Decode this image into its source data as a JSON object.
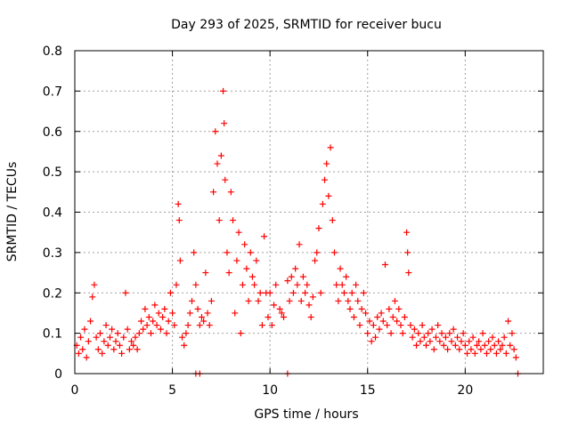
{
  "chart_data": {
    "type": "scatter",
    "title": "Day 293 of 2025, SRMTID for receiver bucu",
    "xlabel": "GPS time / hours",
    "ylabel": "SRMTID / TECUs",
    "xlim": [
      0,
      24
    ],
    "ylim": [
      0,
      0.8
    ],
    "xticks": [
      0,
      5,
      10,
      15,
      20
    ],
    "xtick_labels": [
      "0",
      "5",
      "10",
      "15",
      "20"
    ],
    "yticks": [
      0,
      0.1,
      0.2,
      0.3,
      0.4,
      0.5,
      0.6,
      0.7,
      0.8
    ],
    "ytick_labels": [
      "0",
      "0.1",
      "0.2",
      "0.3",
      "0.4",
      "0.5",
      "0.6",
      "0.7",
      "0.8"
    ],
    "grid": true,
    "marker": "plus",
    "color": "#ff0000",
    "series": [
      {
        "name": "SRMTID",
        "points": [
          [
            0.1,
            0.07
          ],
          [
            0.2,
            0.05
          ],
          [
            0.3,
            0.09
          ],
          [
            0.4,
            0.06
          ],
          [
            0.5,
            0.11
          ],
          [
            0.6,
            0.04
          ],
          [
            0.7,
            0.08
          ],
          [
            0.8,
            0.13
          ],
          [
            0.9,
            0.19
          ],
          [
            1.0,
            0.22
          ],
          [
            1.1,
            0.09
          ],
          [
            1.2,
            0.06
          ],
          [
            1.3,
            0.1
          ],
          [
            1.4,
            0.05
          ],
          [
            1.5,
            0.08
          ],
          [
            1.6,
            0.12
          ],
          [
            1.7,
            0.07
          ],
          [
            1.8,
            0.09
          ],
          [
            1.9,
            0.11
          ],
          [
            2.0,
            0.06
          ],
          [
            2.1,
            0.08
          ],
          [
            2.2,
            0.1
          ],
          [
            2.3,
            0.07
          ],
          [
            2.4,
            0.05
          ],
          [
            2.5,
            0.09
          ],
          [
            2.6,
            0.2
          ],
          [
            2.7,
            0.11
          ],
          [
            2.8,
            0.06
          ],
          [
            2.9,
            0.08
          ],
          [
            3.0,
            0.07
          ],
          [
            3.1,
            0.09
          ],
          [
            3.2,
            0.06
          ],
          [
            3.3,
            0.1
          ],
          [
            3.4,
            0.13
          ],
          [
            3.5,
            0.11
          ],
          [
            3.6,
            0.16
          ],
          [
            3.7,
            0.12
          ],
          [
            3.8,
            0.14
          ],
          [
            3.9,
            0.1
          ],
          [
            4.0,
            0.13
          ],
          [
            4.1,
            0.17
          ],
          [
            4.2,
            0.12
          ],
          [
            4.3,
            0.15
          ],
          [
            4.4,
            0.11
          ],
          [
            4.5,
            0.14
          ],
          [
            4.6,
            0.16
          ],
          [
            4.7,
            0.1
          ],
          [
            4.8,
            0.13
          ],
          [
            4.9,
            0.2
          ],
          [
            5.0,
            0.15
          ],
          [
            5.1,
            0.12
          ],
          [
            5.2,
            0.22
          ],
          [
            5.3,
            0.42
          ],
          [
            5.35,
            0.38
          ],
          [
            5.4,
            0.28
          ],
          [
            5.5,
            0.09
          ],
          [
            5.6,
            0.07
          ],
          [
            5.7,
            0.1
          ],
          [
            5.8,
            0.12
          ],
          [
            5.9,
            0.15
          ],
          [
            6.0,
            0.18
          ],
          [
            6.1,
            0.3
          ],
          [
            6.2,
            0.22
          ],
          [
            6.3,
            0.16
          ],
          [
            6.4,
            0.12
          ],
          [
            6.5,
            0.14
          ],
          [
            6.6,
            0.13
          ],
          [
            6.7,
            0.25
          ],
          [
            6.8,
            0.15
          ],
          [
            6.9,
            0.12
          ],
          [
            7.0,
            0.18
          ],
          [
            7.1,
            0.45
          ],
          [
            7.2,
            0.6
          ],
          [
            7.3,
            0.52
          ],
          [
            7.4,
            0.38
          ],
          [
            7.5,
            0.54
          ],
          [
            7.6,
            0.7
          ],
          [
            7.65,
            0.62
          ],
          [
            7.7,
            0.48
          ],
          [
            7.8,
            0.3
          ],
          [
            7.9,
            0.25
          ],
          [
            8.0,
            0.45
          ],
          [
            8.1,
            0.38
          ],
          [
            8.2,
            0.15
          ],
          [
            8.3,
            0.28
          ],
          [
            8.4,
            0.35
          ],
          [
            8.5,
            0.1
          ],
          [
            8.6,
            0.22
          ],
          [
            8.7,
            0.32
          ],
          [
            8.8,
            0.26
          ],
          [
            8.9,
            0.18
          ],
          [
            9.0,
            0.3
          ],
          [
            9.1,
            0.24
          ],
          [
            9.2,
            0.22
          ],
          [
            9.3,
            0.28
          ],
          [
            9.4,
            0.18
          ],
          [
            9.5,
            0.2
          ],
          [
            9.6,
            0.12
          ],
          [
            9.7,
            0.34
          ],
          [
            9.8,
            0.2
          ],
          [
            9.9,
            0.14
          ],
          [
            10.0,
            0.2
          ],
          [
            10.1,
            0.12
          ],
          [
            10.2,
            0.17
          ],
          [
            10.3,
            0.22
          ],
          [
            10.5,
            0.16
          ],
          [
            10.6,
            0.15
          ],
          [
            10.7,
            0.14
          ],
          [
            10.9,
            0.23
          ],
          [
            11.0,
            0.18
          ],
          [
            11.1,
            0.24
          ],
          [
            11.2,
            0.2
          ],
          [
            11.3,
            0.26
          ],
          [
            11.4,
            0.22
          ],
          [
            11.5,
            0.32
          ],
          [
            11.6,
            0.18
          ],
          [
            11.7,
            0.24
          ],
          [
            11.8,
            0.2
          ],
          [
            11.9,
            0.22
          ],
          [
            12.0,
            0.17
          ],
          [
            12.1,
            0.14
          ],
          [
            12.2,
            0.19
          ],
          [
            12.3,
            0.28
          ],
          [
            12.4,
            0.3
          ],
          [
            12.5,
            0.36
          ],
          [
            12.6,
            0.2
          ],
          [
            12.7,
            0.42
          ],
          [
            12.8,
            0.48
          ],
          [
            12.9,
            0.52
          ],
          [
            13.0,
            0.44
          ],
          [
            13.1,
            0.56
          ],
          [
            13.2,
            0.38
          ],
          [
            13.3,
            0.3
          ],
          [
            13.4,
            0.22
          ],
          [
            13.5,
            0.18
          ],
          [
            13.6,
            0.26
          ],
          [
            13.7,
            0.22
          ],
          [
            13.8,
            0.2
          ],
          [
            13.9,
            0.24
          ],
          [
            14.0,
            0.18
          ],
          [
            14.1,
            0.16
          ],
          [
            14.2,
            0.2
          ],
          [
            14.3,
            0.14
          ],
          [
            14.4,
            0.22
          ],
          [
            14.5,
            0.18
          ],
          [
            14.6,
            0.12
          ],
          [
            14.7,
            0.16
          ],
          [
            14.8,
            0.2
          ],
          [
            14.9,
            0.15
          ],
          [
            15.0,
            0.1
          ],
          [
            15.1,
            0.13
          ],
          [
            15.2,
            0.08
          ],
          [
            15.3,
            0.12
          ],
          [
            15.4,
            0.09
          ],
          [
            15.5,
            0.14
          ],
          [
            15.6,
            0.11
          ],
          [
            15.7,
            0.15
          ],
          [
            15.8,
            0.13
          ],
          [
            15.9,
            0.27
          ],
          [
            16.0,
            0.12
          ],
          [
            16.1,
            0.16
          ],
          [
            16.2,
            0.1
          ],
          [
            16.3,
            0.14
          ],
          [
            16.4,
            0.18
          ],
          [
            16.5,
            0.13
          ],
          [
            16.6,
            0.16
          ],
          [
            16.7,
            0.12
          ],
          [
            16.8,
            0.1
          ],
          [
            16.9,
            0.14
          ],
          [
            17.0,
            0.35
          ],
          [
            17.05,
            0.3
          ],
          [
            17.1,
            0.25
          ],
          [
            17.2,
            0.12
          ],
          [
            17.3,
            0.09
          ],
          [
            17.4,
            0.11
          ],
          [
            17.5,
            0.07
          ],
          [
            17.6,
            0.1
          ],
          [
            17.7,
            0.08
          ],
          [
            17.8,
            0.12
          ],
          [
            17.9,
            0.09
          ],
          [
            18.0,
            0.07
          ],
          [
            18.1,
            0.1
          ],
          [
            18.2,
            0.08
          ],
          [
            18.3,
            0.11
          ],
          [
            18.4,
            0.06
          ],
          [
            18.5,
            0.09
          ],
          [
            18.6,
            0.12
          ],
          [
            18.7,
            0.08
          ],
          [
            18.8,
            0.1
          ],
          [
            18.9,
            0.07
          ],
          [
            19.0,
            0.09
          ],
          [
            19.1,
            0.06
          ],
          [
            19.2,
            0.1
          ],
          [
            19.3,
            0.08
          ],
          [
            19.4,
            0.11
          ],
          [
            19.5,
            0.07
          ],
          [
            19.6,
            0.09
          ],
          [
            19.7,
            0.06
          ],
          [
            19.8,
            0.08
          ],
          [
            19.9,
            0.1
          ],
          [
            20.0,
            0.07
          ],
          [
            20.1,
            0.05
          ],
          [
            20.2,
            0.08
          ],
          [
            20.3,
            0.06
          ],
          [
            20.4,
            0.09
          ],
          [
            20.5,
            0.05
          ],
          [
            20.6,
            0.07
          ],
          [
            20.7,
            0.08
          ],
          [
            20.8,
            0.06
          ],
          [
            20.9,
            0.1
          ],
          [
            21.0,
            0.07
          ],
          [
            21.1,
            0.05
          ],
          [
            21.2,
            0.08
          ],
          [
            21.3,
            0.06
          ],
          [
            21.4,
            0.09
          ],
          [
            21.5,
            0.07
          ],
          [
            21.6,
            0.05
          ],
          [
            21.7,
            0.08
          ],
          [
            21.8,
            0.06
          ],
          [
            21.9,
            0.07
          ],
          [
            22.0,
            0.09
          ],
          [
            22.1,
            0.05
          ],
          [
            22.2,
            0.13
          ],
          [
            22.3,
            0.07
          ],
          [
            22.4,
            0.1
          ],
          [
            22.5,
            0.06
          ],
          [
            22.6,
            0.04
          ],
          [
            22.7,
            0.0
          ],
          [
            6.2,
            0.0
          ],
          [
            6.4,
            0.0
          ],
          [
            10.9,
            0.0
          ]
        ]
      }
    ]
  }
}
